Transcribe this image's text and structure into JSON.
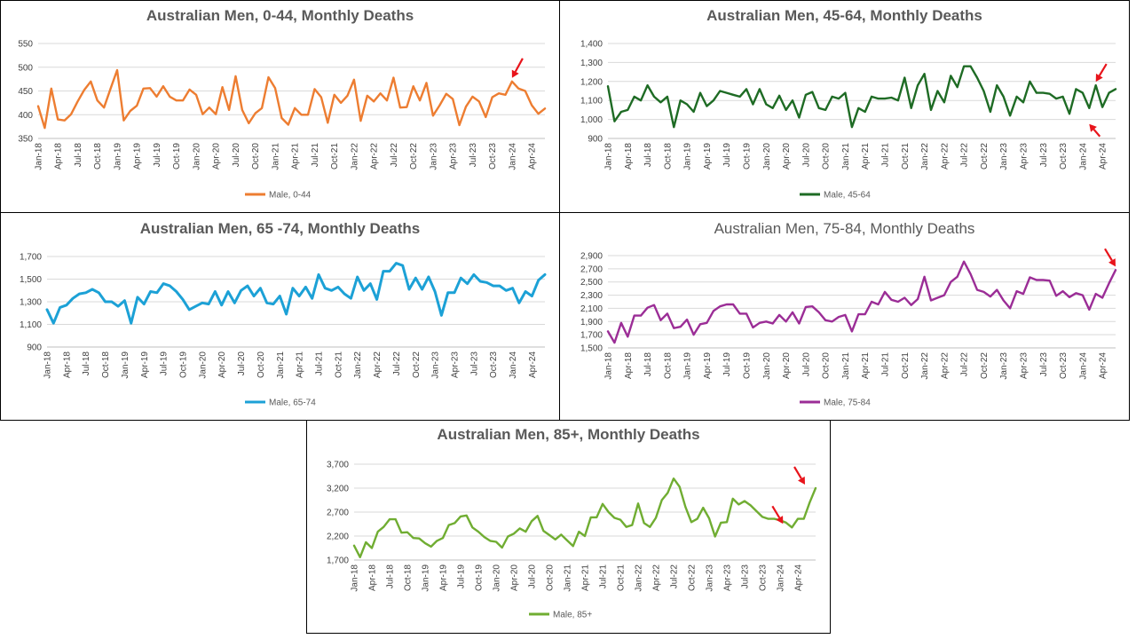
{
  "chart_data": [
    {
      "type": "line",
      "title": "Australian Men, 0-44, Monthly Deaths",
      "title_bold": true,
      "color": "#ED7D31",
      "series": [
        {
          "name": "Male, 0-44",
          "values": [
            418,
            372,
            455,
            390,
            388,
            401,
            428,
            452,
            470,
            430,
            415,
            455,
            494,
            388,
            408,
            419,
            455,
            456,
            438,
            460,
            438,
            430,
            430,
            453,
            442,
            401,
            415,
            401,
            458,
            410,
            481,
            410,
            382,
            403,
            414,
            479,
            456,
            393,
            379,
            414,
            400,
            400,
            454,
            437,
            383,
            442,
            425,
            440,
            474,
            387,
            440,
            428,
            445,
            430,
            478,
            415,
            416,
            460,
            430,
            467,
            398,
            420,
            444,
            433,
            378,
            417,
            438,
            428,
            395,
            437,
            445,
            442,
            470,
            455,
            450,
            420,
            402,
            413
          ]
        }
      ],
      "x_tick_labels": [
        "Jan-18",
        "Apr-18",
        "Jul-18",
        "Oct-18",
        "Jan-19",
        "Apr-19",
        "Jul-19",
        "Oct-19",
        "Jan-20",
        "Apr-20",
        "Jul-20",
        "Oct-20",
        "Jan-21",
        "Apr-21",
        "Jul-21",
        "Oct-21",
        "Jan-22",
        "Apr-22",
        "Jul-22",
        "Oct-22",
        "Jan-23",
        "Apr-23",
        "Jul-23",
        "Oct-23",
        "Jan-24",
        "Apr-24"
      ],
      "y_ticks": [
        350,
        400,
        450,
        500,
        550
      ],
      "y_tick_labels": [
        "350",
        "400",
        "450",
        "500",
        "550"
      ],
      "ylim": [
        350,
        550
      ],
      "legend": "bottom",
      "annotations": [
        {
          "type": "arrow",
          "month_index": 72
        }
      ]
    },
    {
      "type": "line",
      "title": "Australian Men, 45-64, Monthly Deaths",
      "title_bold": true,
      "color": "#1E6B24",
      "series": [
        {
          "name": "Male, 45-64",
          "values": [
            1175,
            990,
            1040,
            1050,
            1120,
            1100,
            1180,
            1120,
            1090,
            1120,
            960,
            1100,
            1080,
            1040,
            1140,
            1070,
            1100,
            1150,
            1140,
            1130,
            1120,
            1160,
            1080,
            1160,
            1080,
            1060,
            1125,
            1050,
            1100,
            1010,
            1130,
            1145,
            1060,
            1050,
            1120,
            1110,
            1140,
            960,
            1060,
            1040,
            1120,
            1110,
            1110,
            1115,
            1100,
            1220,
            1060,
            1180,
            1240,
            1050,
            1150,
            1090,
            1230,
            1170,
            1280,
            1280,
            1220,
            1150,
            1040,
            1180,
            1120,
            1020,
            1120,
            1090,
            1200,
            1140,
            1140,
            1135,
            1110,
            1120,
            1030,
            1160,
            1140,
            1060,
            1180,
            1065,
            1140,
            1160
          ]
        }
      ],
      "x_tick_labels": [
        "Jan-18",
        "Apr-18",
        "Jul-18",
        "Oct-18",
        "Jan-19",
        "Apr-19",
        "Jul-19",
        "Oct-19",
        "Jan-20",
        "Apr-20",
        "Jul-20",
        "Oct-20",
        "Jan-21",
        "Apr-21",
        "Jul-21",
        "Oct-21",
        "Jan-22",
        "Apr-22",
        "Jul-22",
        "Oct-22",
        "Jan-23",
        "Apr-23",
        "Jul-23",
        "Oct-23",
        "Jan-24",
        "Apr-24"
      ],
      "y_ticks": [
        900,
        1000,
        1100,
        1200,
        1300,
        1400
      ],
      "y_tick_labels": [
        "900",
        "1,000",
        "1,100",
        "1,200",
        "1,300",
        "1,400"
      ],
      "ylim": [
        900,
        1400
      ],
      "legend": "bottom",
      "annotations": [
        {
          "type": "arrow",
          "month_index": 74
        },
        {
          "type": "arrow",
          "month_index": 73
        }
      ]
    },
    {
      "type": "line",
      "title": "Australian Men, 65 -74, Monthly Deaths",
      "title_bold": true,
      "color": "#1CA1D6",
      "series": [
        {
          "name": "Male, 65-74",
          "values": [
            1230,
            1110,
            1250,
            1270,
            1330,
            1370,
            1380,
            1410,
            1380,
            1300,
            1300,
            1260,
            1310,
            1110,
            1340,
            1280,
            1390,
            1380,
            1460,
            1440,
            1390,
            1320,
            1230,
            1260,
            1290,
            1280,
            1390,
            1270,
            1390,
            1290,
            1400,
            1440,
            1350,
            1420,
            1290,
            1280,
            1350,
            1190,
            1420,
            1350,
            1430,
            1330,
            1540,
            1420,
            1400,
            1430,
            1370,
            1330,
            1520,
            1400,
            1460,
            1320,
            1570,
            1570,
            1640,
            1620,
            1410,
            1510,
            1410,
            1520,
            1390,
            1180,
            1380,
            1380,
            1510,
            1460,
            1540,
            1480,
            1470,
            1440,
            1440,
            1400,
            1420,
            1290,
            1390,
            1350,
            1490,
            1540
          ]
        }
      ],
      "x_tick_labels": [
        "Jan-18",
        "Apr-18",
        "Jul-18",
        "Oct-18",
        "Jan-19",
        "Apr-19",
        "Jul-19",
        "Oct-19",
        "Jan-20",
        "Apr-20",
        "Jul-20",
        "Oct-20",
        "Jan-21",
        "Apr-21",
        "Jul-21",
        "Oct-21",
        "Jan-22",
        "Apr-22",
        "Jul-22",
        "Oct-22",
        "Jan-23",
        "Apr-23",
        "Jul-23",
        "Oct-23",
        "Jan-24",
        "Apr-24"
      ],
      "y_ticks": [
        900,
        1100,
        1300,
        1500,
        1700
      ],
      "y_tick_labels": [
        "900",
        "1,100",
        "1,300",
        "1,500",
        "1,700"
      ],
      "ylim": [
        900,
        1700
      ],
      "legend": "bottom",
      "annotations": []
    },
    {
      "type": "line",
      "title": "Australian Men, 75-84, Monthly Deaths",
      "title_bold": false,
      "color": "#9B2D96",
      "series": [
        {
          "name": "Male, 75-84",
          "values": [
            1750,
            1580,
            1880,
            1670,
            1990,
            1990,
            2110,
            2150,
            1920,
            2020,
            1800,
            1820,
            1930,
            1700,
            1860,
            1880,
            2060,
            2130,
            2160,
            2160,
            2020,
            2020,
            1810,
            1880,
            1900,
            1870,
            2000,
            1900,
            2040,
            1870,
            2120,
            2130,
            2040,
            1920,
            1900,
            1970,
            2000,
            1750,
            2010,
            2010,
            2200,
            2160,
            2350,
            2230,
            2200,
            2260,
            2150,
            2240,
            2580,
            2220,
            2260,
            2300,
            2500,
            2580,
            2810,
            2620,
            2380,
            2350,
            2280,
            2380,
            2220,
            2100,
            2360,
            2320,
            2570,
            2530,
            2530,
            2520,
            2290,
            2360,
            2270,
            2330,
            2300,
            2080,
            2320,
            2260,
            2480,
            2680
          ]
        }
      ],
      "x_tick_labels": [
        "Jan-18",
        "Apr-18",
        "Jul-18",
        "Oct-18",
        "Jan-19",
        "Apr-19",
        "Jul-19",
        "Oct-19",
        "Jan-20",
        "Apr-20",
        "Jul-20",
        "Oct-20",
        "Jan-21",
        "Apr-21",
        "Jul-21",
        "Oct-21",
        "Jan-22",
        "Apr-22",
        "Jul-22",
        "Oct-22",
        "Jan-23",
        "Apr-23",
        "Jul-23",
        "Oct-23",
        "Jan-24",
        "Apr-24"
      ],
      "y_ticks": [
        1500,
        1700,
        1900,
        2100,
        2300,
        2500,
        2700,
        2900
      ],
      "y_tick_labels": [
        "1,500",
        "1,700",
        "1,900",
        "2,100",
        "2,300",
        "2,500",
        "2,700",
        "2,900"
      ],
      "ylim": [
        1500,
        2900
      ],
      "legend": "bottom",
      "annotations": [
        {
          "type": "arrow",
          "month_index": 77
        }
      ]
    },
    {
      "type": "line",
      "title": "Australian Men, 85+, Monthly Deaths",
      "title_bold": true,
      "color": "#70AD32",
      "series": [
        {
          "name": "Male, 85+",
          "values": [
            2000,
            1760,
            2070,
            1950,
            2290,
            2390,
            2550,
            2550,
            2270,
            2280,
            2160,
            2150,
            2050,
            1980,
            2100,
            2160,
            2430,
            2470,
            2610,
            2630,
            2380,
            2290,
            2180,
            2100,
            2080,
            1960,
            2190,
            2250,
            2360,
            2290,
            2510,
            2620,
            2310,
            2220,
            2130,
            2230,
            2110,
            1990,
            2290,
            2200,
            2590,
            2590,
            2870,
            2700,
            2580,
            2540,
            2390,
            2430,
            2880,
            2470,
            2390,
            2580,
            2950,
            3100,
            3400,
            3230,
            2810,
            2490,
            2560,
            2790,
            2570,
            2190,
            2480,
            2490,
            2980,
            2860,
            2930,
            2840,
            2720,
            2600,
            2560,
            2560,
            2530,
            2480,
            2380,
            2560,
            2560,
            2900,
            3200
          ]
        }
      ],
      "x_tick_labels": [
        "Jan-18",
        "Apr-18",
        "Jul-18",
        "Oct-18",
        "Jan-19",
        "Apr-19",
        "Jul-19",
        "Oct-19",
        "Jan-20",
        "Apr-20",
        "Jul-20",
        "Oct-20",
        "Jan-21",
        "Apr-21",
        "Jul-21",
        "Oct-21",
        "Jan-22",
        "Apr-22",
        "Jul-22",
        "Oct-22",
        "Jan-23",
        "Apr-23",
        "Jul-23",
        "Oct-23",
        "Jan-24",
        "Apr-24"
      ],
      "y_ticks": [
        1700,
        2200,
        2700,
        3200,
        3700
      ],
      "y_tick_labels": [
        "1,700",
        "2,200",
        "2,700",
        "3,200",
        "3,700"
      ],
      "ylim": [
        1700,
        3700
      ],
      "legend": "bottom",
      "annotations": [
        {
          "type": "arrow",
          "month_index": 74
        },
        {
          "type": "arrow",
          "month_index": 78
        }
      ]
    }
  ],
  "colors": {
    "arrow": "#E8141B",
    "grid": "#D9D9D9",
    "axis": "#BFBFBF"
  }
}
